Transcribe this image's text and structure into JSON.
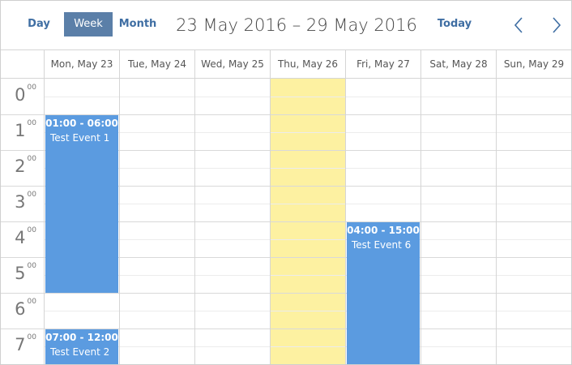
{
  "toolbar": {
    "views": [
      "Day",
      "Week",
      "Month"
    ],
    "active_view": "Week",
    "title": "23 May 2016 – 29 May 2016",
    "today_label": "Today",
    "prev_icon": "chevron-left-icon",
    "next_icon": "chevron-right-icon"
  },
  "days": [
    "Mon, May 23",
    "Tue, May 24",
    "Wed, May 25",
    "Thu, May 26",
    "Fri, May 27",
    "Sat, May 28",
    "Sun, May 29"
  ],
  "today_index": 3,
  "hours": [
    {
      "hour": "0",
      "minutes": "00"
    },
    {
      "hour": "1",
      "minutes": "00"
    },
    {
      "hour": "2",
      "minutes": "00"
    },
    {
      "hour": "3",
      "minutes": "00"
    },
    {
      "hour": "4",
      "minutes": "00"
    },
    {
      "hour": "5",
      "minutes": "00"
    },
    {
      "hour": "6",
      "minutes": "00"
    },
    {
      "hour": "7",
      "minutes": "00"
    }
  ],
  "events": [
    {
      "day": 0,
      "start": 1,
      "end": 6,
      "time": "01:00 - 06:00",
      "title": "Test Event 1"
    },
    {
      "day": 0,
      "start": 7,
      "end": 12,
      "time": "07:00 - 12:00",
      "title": "Test Event 2"
    },
    {
      "day": 4,
      "start": 4,
      "end": 15,
      "time": "04:00 - 15:00",
      "title": "Test Event 6"
    }
  ],
  "colors": {
    "accent": "#3f6ea3",
    "active_view_bg": "#5b7fa8",
    "today_bg": "#fdf1a1",
    "event_bg": "#5b9be0"
  }
}
